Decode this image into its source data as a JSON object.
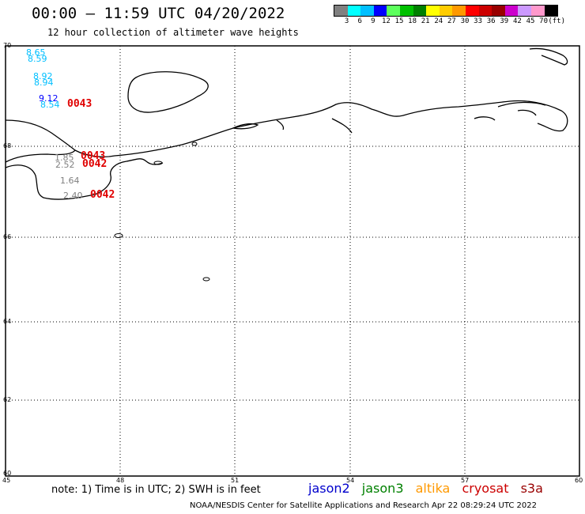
{
  "header": {
    "title": "00:00 – 11:59 UTC 04/20/2022",
    "subtitle": "12 hour collection of altimeter wave heights"
  },
  "legend": {
    "colors": [
      "#808080",
      "#00ffff",
      "#00bfff",
      "#0000ff",
      "#5cff5c",
      "#00c000",
      "#008000",
      "#ffff00",
      "#ffcc00",
      "#ff9900",
      "#ff0000",
      "#cc0000",
      "#990000",
      "#cc00cc",
      "#cc99ff",
      "#ff99cc",
      "#000000"
    ],
    "labels": [
      "3",
      "6",
      "9",
      "12",
      "15",
      "18",
      "21",
      "24",
      "27",
      "30",
      "33",
      "36",
      "39",
      "42",
      "45",
      "70",
      "(ft)"
    ]
  },
  "axes": {
    "lat_labels": [
      "70",
      "68",
      "66",
      "64",
      "62",
      "60"
    ],
    "lon_labels": [
      "45",
      "48",
      "51",
      "54",
      "57",
      "60"
    ]
  },
  "observations": [
    {
      "value": "8.65",
      "color": "#00bfff"
    },
    {
      "value": "8.59",
      "color": "#00bfff"
    },
    {
      "value": "8.92",
      "color": "#00bfff"
    },
    {
      "value": "8.94",
      "color": "#00bfff"
    },
    {
      "value": "9.12",
      "color": "#0000ff"
    },
    {
      "value": "8.54",
      "color": "#00bfff"
    },
    {
      "value": "1.85",
      "color": "#808080"
    },
    {
      "value": "2.52",
      "color": "#808080"
    },
    {
      "value": "1.64",
      "color": "#808080"
    },
    {
      "value": "2.40",
      "color": "#808080"
    }
  ],
  "pass_times": [
    "0043",
    "0043",
    "0042",
    "0042"
  ],
  "footer": {
    "note": "note: 1) Time is in UTC; 2) SWH is in feet",
    "satellites": [
      {
        "name": "jason2",
        "color": "#0000cc"
      },
      {
        "name": "jason3",
        "color": "#008000"
      },
      {
        "name": "altika",
        "color": "#ff9900"
      },
      {
        "name": "cryosat",
        "color": "#cc0000"
      },
      {
        "name": "s3a",
        "color": "#990000"
      }
    ],
    "credit": "NOAA/NESDIS Center for Satellite Applications and Research   Apr 22 08:29:24 UTC 2022"
  }
}
